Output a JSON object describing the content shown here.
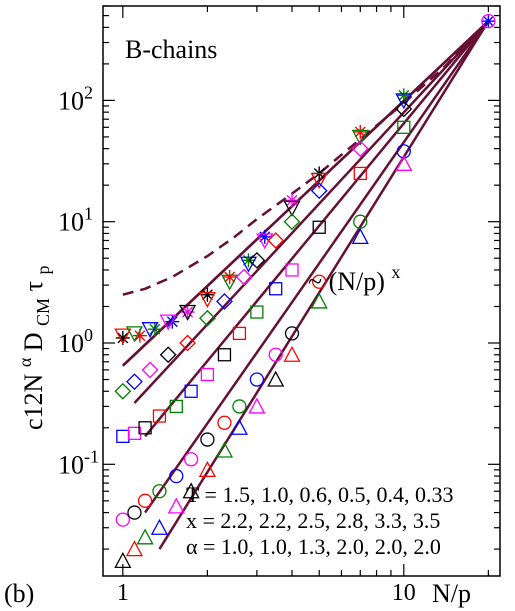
{
  "panel_label": "(b)",
  "chart_data": {
    "type": "scatter",
    "title": "",
    "x_scale": "log",
    "y_scale": "log",
    "xlim": [
      0.85,
      22
    ],
    "ylim": [
      0.012,
      600
    ],
    "xlabel": "N/p",
    "ylabel_parts": [
      "c12N",
      "α",
      "D",
      "CM",
      "τ",
      "p"
    ],
    "x_ticks": [
      1,
      10
    ],
    "x_tick_labels": [
      "1",
      "10"
    ],
    "y_ticks": [
      0.1,
      1,
      10,
      100
    ],
    "y_tick_base": "10",
    "y_tick_exponents": [
      "-1",
      "0",
      "1",
      "2"
    ],
    "annotations": {
      "system": "B-chains",
      "scaling_base": "~ (N/p)",
      "scaling_exp": "x",
      "legend_T": "T = 1.5, 1.0, 0.6, 0.5, 0.4, 0.33",
      "legend_x": "x = 2.2, 2.2, 2.5, 2.8, 3.3, 3.5",
      "legend_alpha": "α = 1.0, 1.0, 1.3, 2.0, 2.0, 2.0"
    },
    "colors": {
      "line": "#661133",
      "black": "#000000",
      "red": "#ff0000",
      "green": "#008000",
      "blue": "#0000ff",
      "magenta": "#ff00ff"
    },
    "dashed_curve": {
      "x": [
        1,
        1.2,
        1.5,
        2,
        2.5,
        3,
        4,
        5,
        7,
        10,
        14,
        20
      ],
      "y": [
        2.5,
        2.8,
        3.5,
        5.2,
        7.5,
        10.5,
        17,
        25,
        48,
        95,
        190,
        450
      ]
    },
    "fit_lines": [
      {
        "T": "1.5",
        "x0": 1.0,
        "x1": 20,
        "y0": 0.65,
        "y1": 450
      },
      {
        "T": "1.0",
        "x0": 1.0,
        "x1": 20,
        "y0": 0.65,
        "y1": 450
      },
      {
        "T": "0.6",
        "x0": 1.1,
        "x1": 20,
        "y0": 0.32,
        "y1": 450
      },
      {
        "T": "0.5",
        "x0": 1.2,
        "x1": 20,
        "y0": 0.17,
        "y1": 450
      },
      {
        "T": "0.4",
        "x0": 1.2,
        "x1": 20,
        "y0": 0.04,
        "y1": 450
      },
      {
        "T": "0.33",
        "x0": 1.35,
        "x1": 20,
        "y0": 0.02,
        "y1": 450
      }
    ],
    "series": [
      {
        "T": "1.5",
        "marker": "star",
        "x": [
          1.0,
          1.15,
          1.3,
          1.5,
          1.7,
          2.0,
          2.4,
          2.8,
          3.2,
          4.0,
          5.0,
          7.0,
          10.0,
          20.0
        ],
        "y": [
          1.1,
          1.15,
          1.3,
          1.5,
          1.8,
          2.5,
          3.5,
          4.8,
          7.5,
          15,
          25,
          55,
          110,
          450
        ]
      },
      {
        "T": "1.0",
        "marker": "tri_down",
        "x": [
          1.0,
          1.1,
          1.25,
          1.45,
          1.7,
          2.0,
          2.4,
          2.8,
          3.2,
          4.0,
          5.0,
          7.0,
          10.0
        ],
        "y": [
          1.15,
          1.2,
          1.3,
          1.5,
          1.8,
          2.3,
          3.2,
          4.5,
          7.0,
          13,
          22,
          50,
          100
        ]
      },
      {
        "T": "0.6",
        "marker": "diamond",
        "x": [
          1.0,
          1.1,
          1.25,
          1.45,
          1.7,
          2.0,
          2.3,
          2.7,
          3.0,
          3.5,
          4.0,
          5.0,
          7.0,
          10.0
        ],
        "y": [
          0.4,
          0.48,
          0.6,
          0.8,
          1.0,
          1.6,
          2.2,
          3.5,
          4.8,
          7,
          10,
          18,
          40,
          85
        ]
      },
      {
        "T": "0.5",
        "marker": "square",
        "x": [
          1.0,
          1.1,
          1.2,
          1.35,
          1.55,
          1.75,
          2.0,
          2.3,
          2.6,
          3.0,
          3.5,
          4.0,
          5.0,
          7.0,
          10.0
        ],
        "y": [
          0.17,
          0.18,
          0.2,
          0.25,
          0.3,
          0.4,
          0.55,
          0.8,
          1.2,
          1.8,
          2.8,
          4,
          9,
          25,
          60
        ]
      },
      {
        "T": "0.4",
        "marker": "circle",
        "x": [
          1.0,
          1.1,
          1.2,
          1.35,
          1.55,
          1.75,
          2.0,
          2.3,
          2.6,
          3.0,
          3.5,
          4.0,
          5.0,
          7.0,
          10.0,
          20.0
        ],
        "y": [
          0.035,
          0.04,
          0.05,
          0.06,
          0.08,
          0.11,
          0.16,
          0.22,
          0.3,
          0.5,
          0.8,
          1.2,
          3.2,
          10,
          38,
          450
        ]
      },
      {
        "T": "0.33",
        "marker": "triangle",
        "x": [
          1.0,
          1.1,
          1.2,
          1.35,
          1.55,
          1.75,
          2.0,
          2.3,
          2.6,
          3.0,
          3.5,
          4.0,
          5.0,
          7.0,
          10.0
        ],
        "y": [
          0.016,
          0.02,
          0.025,
          0.03,
          0.045,
          0.06,
          0.09,
          0.13,
          0.2,
          0.3,
          0.5,
          0.8,
          2.2,
          7.5,
          30
        ]
      }
    ]
  }
}
